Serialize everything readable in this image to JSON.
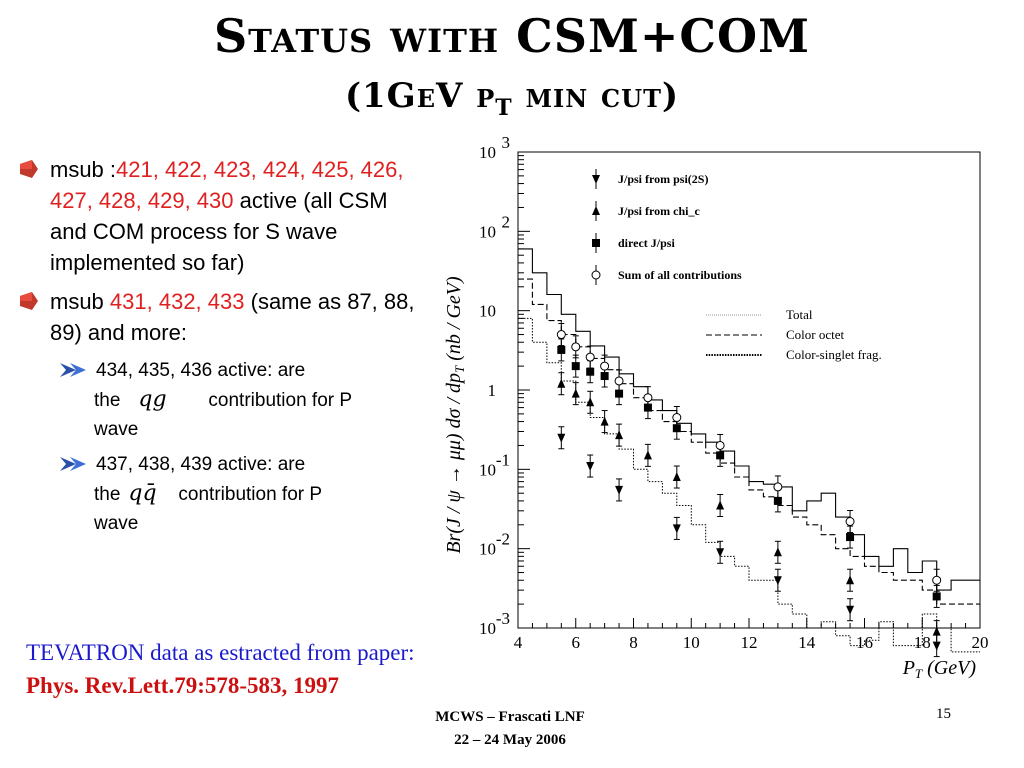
{
  "slide": {
    "title_line1": "Status with CSM+COM",
    "title_line2_pre": "(1GeV p",
    "title_line2_sub": "T",
    "title_line2_post": " min cut)",
    "bullets": [
      {
        "prefix": "msub :",
        "red": "421, 422, 423, 424, 425, 426, 427, 428, 429, 430",
        "suffix": " active (all CSM and COM process for S wave implemented so far)"
      },
      {
        "prefix": "msub ",
        "red": "431, 432, 433",
        "suffix": " (same as 87, 88, 89) and more:"
      }
    ],
    "sub_bullets": [
      {
        "line1": "434, 435, 436 active: are",
        "pre": "the",
        "math": "qg",
        "post": "contribution for P",
        "last": "wave"
      },
      {
        "line1": "437, 438, 439 active: are",
        "pre": "the",
        "math": "qq̄",
        "post": "contribution for P",
        "last": "wave"
      }
    ],
    "reference_line1": "TEVATRON data as estracted from paper:",
    "reference_line2": "Phys. Rev.Lett.79:578-583, 1997",
    "footer_line1": "MCWS – Frascati LNF",
    "footer_line2": "22 – 24 May 2006",
    "page_number": "15"
  },
  "colors": {
    "bullet_marker": "#c0392b",
    "red_text": "#e02020",
    "reference_blue": "#1a1acc",
    "reference_red": "#cc1010",
    "arrow_marker": "#2a4fa8"
  },
  "chart_data": {
    "type": "scatter",
    "xlabel": "P_T (GeV)",
    "ylabel": "Br(J/ψ → μμ) dσ/dp_T (nb/GeV)",
    "xlim": [
      4,
      20
    ],
    "ylim_log10": [
      -3,
      3
    ],
    "log_y": true,
    "x_ticks": [
      "4",
      "6",
      "8",
      "10",
      "12",
      "14",
      "16",
      "18",
      "20"
    ],
    "y_ticks": [
      {
        "base": "10",
        "exp": "3"
      },
      {
        "base": "10",
        "exp": "2"
      },
      {
        "base": "10",
        "exp": ""
      },
      {
        "base": "1",
        "exp": ""
      },
      {
        "base": "10",
        "exp": "-1"
      },
      {
        "base": "10",
        "exp": "-2"
      },
      {
        "base": "10",
        "exp": "-3"
      }
    ],
    "legend_placement": "top-left",
    "series": [
      {
        "name": "J/psi from psi(2S)",
        "marker": "triangle-down",
        "x": [
          5.5,
          6.5,
          7.5,
          9.5,
          11,
          13,
          15.5,
          18.5
        ],
        "y": [
          0.25,
          0.11,
          0.055,
          0.018,
          0.009,
          0.004,
          0.0017,
          0.0006
        ]
      },
      {
        "name": "J/psi from chi_c",
        "marker": "triangle-up",
        "x": [
          5.5,
          6.0,
          6.5,
          7.0,
          7.5,
          8.5,
          9.5,
          11,
          13,
          15.5,
          18.5
        ],
        "y": [
          1.2,
          0.9,
          0.7,
          0.4,
          0.27,
          0.15,
          0.08,
          0.035,
          0.009,
          0.004,
          0.0009
        ]
      },
      {
        "name": "direct J/psi",
        "marker": "square",
        "x": [
          5.5,
          6.0,
          6.5,
          7.0,
          7.5,
          8.5,
          9.5,
          11,
          13,
          15.5,
          18.5
        ],
        "y": [
          3.2,
          2.0,
          1.7,
          1.5,
          0.9,
          0.6,
          0.33,
          0.15,
          0.04,
          0.014,
          0.0025
        ]
      },
      {
        "name": "Sum of all contributions",
        "marker": "open-circle",
        "x": [
          5.5,
          6.0,
          6.5,
          7.0,
          7.5,
          8.5,
          9.5,
          11,
          13,
          15.5,
          18.5
        ],
        "y": [
          5.0,
          3.5,
          2.6,
          2.0,
          1.3,
          0.8,
          0.45,
          0.2,
          0.06,
          0.022,
          0.004
        ]
      }
    ],
    "curves": [
      {
        "name": "Total",
        "style": "solid",
        "x": [
          4,
          4.5,
          5.0,
          5.5,
          6.0,
          6.5,
          7.0,
          7.5,
          8.0,
          8.5,
          9.0,
          9.5,
          10,
          10.5,
          11,
          11.5,
          12,
          12.5,
          13,
          13.5,
          14,
          14.5,
          15,
          15.5,
          16,
          16.5,
          17,
          17.5,
          18,
          18.5,
          19,
          19.5,
          20
        ],
        "y": [
          60,
          30,
          16,
          9,
          5.5,
          3.6,
          2.6,
          1.6,
          1.1,
          0.75,
          0.55,
          0.38,
          0.28,
          0.22,
          0.17,
          0.11,
          0.07,
          0.065,
          0.06,
          0.03,
          0.04,
          0.05,
          0.025,
          0.015,
          0.008,
          0.006,
          0.01,
          0.005,
          0.007,
          0.003,
          0.004,
          0.004,
          0.004
        ]
      },
      {
        "name": "Color octet",
        "style": "dashed",
        "x": [
          4,
          4.5,
          5.0,
          5.5,
          6.0,
          6.5,
          7.0,
          7.5,
          8.0,
          8.5,
          9.0,
          9.5,
          10,
          10.5,
          11,
          11.5,
          12,
          12.5,
          13,
          13.5,
          14,
          14.5,
          15,
          15.5,
          16,
          16.5,
          17,
          17.5,
          18,
          18.5,
          19,
          19.5,
          20
        ],
        "y": [
          25,
          12,
          7.5,
          5,
          3.5,
          2.5,
          1.8,
          1.2,
          0.8,
          0.55,
          0.4,
          0.3,
          0.22,
          0.16,
          0.12,
          0.08,
          0.055,
          0.045,
          0.035,
          0.025,
          0.02,
          0.015,
          0.01,
          0.008,
          0.006,
          0.005,
          0.004,
          0.004,
          0.003,
          0.002,
          0.002,
          0.002,
          0.002
        ]
      },
      {
        "name": "Color-singlet frag.",
        "style": "dotted",
        "x": [
          4,
          4.5,
          5.0,
          5.5,
          6.0,
          6.5,
          7.0,
          7.5,
          8.0,
          8.5,
          9.0,
          9.5,
          10,
          10.5,
          11,
          11.5,
          12,
          12.5,
          13,
          13.5,
          14,
          14.5,
          15,
          15.5,
          16,
          16.5,
          17,
          17.5,
          18,
          18.5,
          19,
          19.5,
          20
        ],
        "y": [
          8,
          4,
          2.2,
          1.3,
          0.7,
          0.45,
          0.28,
          0.18,
          0.1,
          0.07,
          0.05,
          0.035,
          0.02,
          0.012,
          0.008,
          0.006,
          0.004,
          0.004,
          0.002,
          0.0015,
          0.001,
          0.0012,
          0.0008,
          0.0006,
          0.0007,
          0.0012,
          0.0006,
          0.0006,
          0.0015,
          0.001,
          0.0005,
          0.0005,
          0.0005
        ]
      }
    ]
  }
}
